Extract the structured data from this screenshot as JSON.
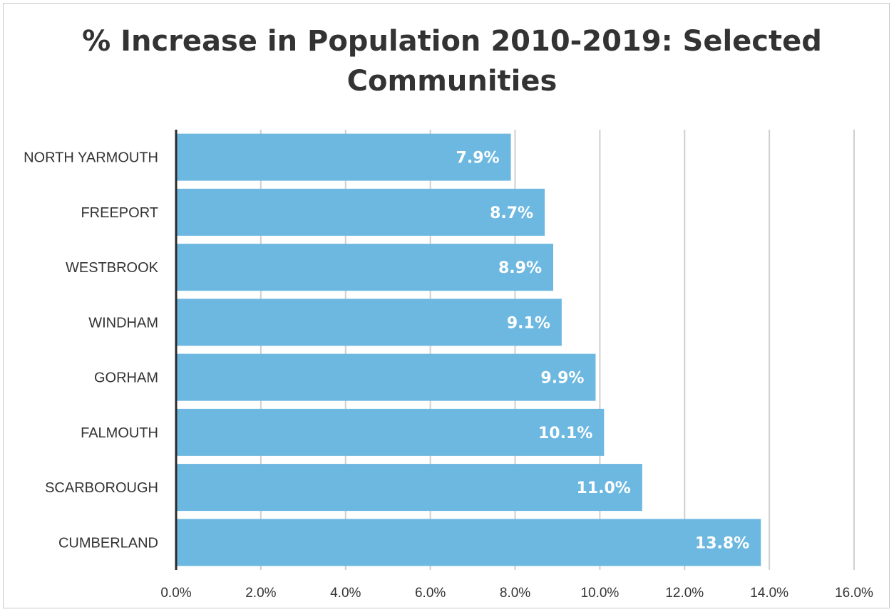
{
  "chart_data": {
    "type": "bar",
    "orientation": "horizontal",
    "title_line1": "% Increase in Population 2010-2019: Selected",
    "title_line2": "Communities",
    "categories": [
      "NORTH YARMOUTH",
      "FREEPORT",
      "WESTBROOK",
      "WINDHAM",
      "GORHAM",
      "FALMOUTH",
      "SCARBOROUGH",
      "CUMBERLAND"
    ],
    "values": [
      7.9,
      8.7,
      8.9,
      9.1,
      9.9,
      10.1,
      11.0,
      13.8
    ],
    "data_labels": [
      "7.9%",
      "8.7%",
      "8.9%",
      "9.1%",
      "9.9%",
      "10.1%",
      "11.0%",
      "13.8%"
    ],
    "xlim": [
      0,
      16
    ],
    "x_ticks": [
      0,
      2,
      4,
      6,
      8,
      10,
      12,
      14,
      16
    ],
    "x_tick_labels": [
      "0.0%",
      "2.0%",
      "4.0%",
      "6.0%",
      "8.0%",
      "10.0%",
      "12.0%",
      "14.0%",
      "16.0%"
    ],
    "xlabel": "",
    "ylabel": "",
    "grid": "vertical",
    "legend": "none",
    "bar_color": "#6cb8e0"
  }
}
